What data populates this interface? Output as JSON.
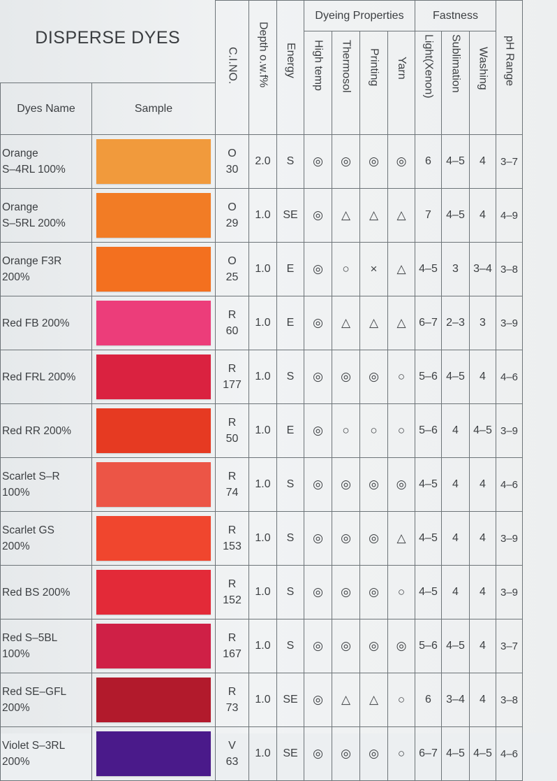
{
  "title": "DISPERSE DYES",
  "headers": {
    "ci_no": "C.I.NO.",
    "depth": "Depth o.w.f%",
    "energy": "Energy",
    "dyeing_properties": "Dyeing Properties",
    "high_temp": "High temp",
    "thermosol": "Thermosol",
    "printing": "Printing",
    "yarn": "Yarn",
    "fastness": "Fastness",
    "light": "Light(Xenon)",
    "sublimation": "Sublimation",
    "washing": "Washing",
    "ph_range": "pH Range",
    "dyes_name": "Dyes Name",
    "sample": "Sample"
  },
  "rows": [
    {
      "name1": "Orange",
      "name2": "S–4RL 100%",
      "color": "#f19a3c",
      "ci1": "O",
      "ci2": "30",
      "depth": "2.0",
      "energy": "S",
      "high_temp": "◎",
      "thermosol": "◎",
      "printing": "◎",
      "yarn": "◎",
      "light": "6",
      "sublimation": "4–5",
      "washing": "4",
      "ph": "3–7"
    },
    {
      "name1": "Orange",
      "name2": "S–5RL 200%",
      "color": "#f27c25",
      "ci1": "O",
      "ci2": "29",
      "depth": "1.0",
      "energy": "SE",
      "high_temp": "◎",
      "thermosol": "△",
      "printing": "△",
      "yarn": "△",
      "light": "7",
      "sublimation": "4–5",
      "washing": "4",
      "ph": "4–9"
    },
    {
      "name1": "Orange F3R",
      "name2": "200%",
      "color": "#f3701f",
      "ci1": "O",
      "ci2": "25",
      "depth": "1.0",
      "energy": "E",
      "high_temp": "◎",
      "thermosol": "○",
      "printing": "×",
      "yarn": "△",
      "light": "4–5",
      "sublimation": "3",
      "washing": "3–4",
      "ph": "3–8"
    },
    {
      "name1": "Red FB 200%",
      "name2": "",
      "color": "#ec3d7a",
      "ci1": "R",
      "ci2": "60",
      "depth": "1.0",
      "energy": "E",
      "high_temp": "◎",
      "thermosol": "△",
      "printing": "△",
      "yarn": "△",
      "light": "6–7",
      "sublimation": "2–3",
      "washing": "3",
      "ph": "3–9"
    },
    {
      "name1": "Red FRL 200%",
      "name2": "",
      "color": "#da2240",
      "ci1": "R",
      "ci2": "177",
      "depth": "1.0",
      "energy": "S",
      "high_temp": "◎",
      "thermosol": "◎",
      "printing": "◎",
      "yarn": "○",
      "light": "5–6",
      "sublimation": "4–5",
      "washing": "4",
      "ph": "4–6"
    },
    {
      "name1": "Red RR 200%",
      "name2": "",
      "color": "#e63a22",
      "ci1": "R",
      "ci2": "50",
      "depth": "1.0",
      "energy": "E",
      "high_temp": "◎",
      "thermosol": "○",
      "printing": "○",
      "yarn": "○",
      "light": "5–6",
      "sublimation": "4",
      "washing": "4–5",
      "ph": "3–9"
    },
    {
      "name1": "Scarlet S–R",
      "name2": "100%",
      "color": "#ec5546",
      "ci1": "R",
      "ci2": "74",
      "depth": "1.0",
      "energy": "S",
      "high_temp": "◎",
      "thermosol": "◎",
      "printing": "◎",
      "yarn": "◎",
      "light": "4–5",
      "sublimation": "4",
      "washing": "4",
      "ph": "4–6"
    },
    {
      "name1": "Scarlet GS",
      "name2": "200%",
      "color": "#f0462e",
      "ci1": "R",
      "ci2": "153",
      "depth": "1.0",
      "energy": "S",
      "high_temp": "◎",
      "thermosol": "◎",
      "printing": "◎",
      "yarn": "△",
      "light": "4–5",
      "sublimation": "4",
      "washing": "4",
      "ph": "3–9"
    },
    {
      "name1": "Red BS 200%",
      "name2": "",
      "color": "#e32a38",
      "ci1": "R",
      "ci2": "152",
      "depth": "1.0",
      "energy": "S",
      "high_temp": "◎",
      "thermosol": "◎",
      "printing": "◎",
      "yarn": "○",
      "light": "4–5",
      "sublimation": "4",
      "washing": "4",
      "ph": "3–9"
    },
    {
      "name1": "Red S–5BL",
      "name2": "100%",
      "color": "#cf2046",
      "ci1": "R",
      "ci2": "167",
      "depth": "1.0",
      "energy": "S",
      "high_temp": "◎",
      "thermosol": "◎",
      "printing": "◎",
      "yarn": "◎",
      "light": "5–6",
      "sublimation": "4–5",
      "washing": "4",
      "ph": "3–7"
    },
    {
      "name1": "Red SE–GFL",
      "name2": "200%",
      "color": "#b21a2c",
      "ci1": "R",
      "ci2": "73",
      "depth": "1.0",
      "energy": "SE",
      "high_temp": "◎",
      "thermosol": "△",
      "printing": "△",
      "yarn": "○",
      "light": "6",
      "sublimation": "3–4",
      "washing": "4",
      "ph": "3–8"
    },
    {
      "name1": "Violet S–3RL",
      "name2": "200%",
      "color": "#4a1a8a",
      "ci1": "V",
      "ci2": "63",
      "depth": "1.0",
      "energy": "SE",
      "high_temp": "◎",
      "thermosol": "◎",
      "printing": "◎",
      "yarn": "○",
      "light": "6–7",
      "sublimation": "4–5",
      "washing": "4–5",
      "ph": "4–6"
    }
  ]
}
